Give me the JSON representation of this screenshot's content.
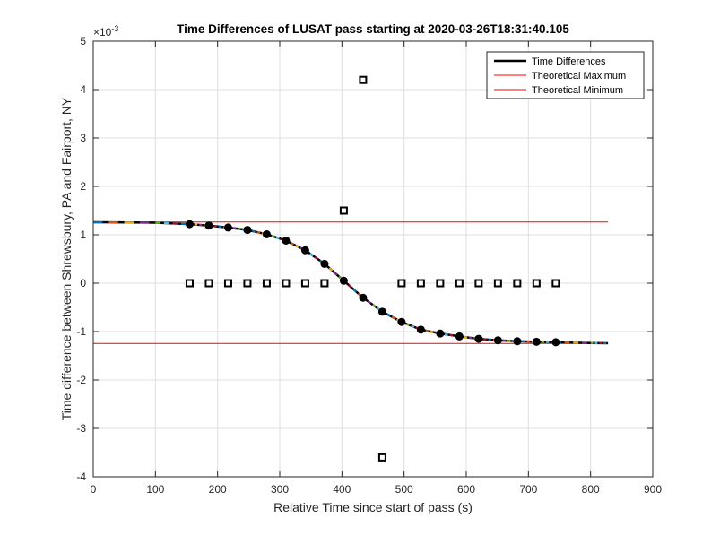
{
  "chart_data": {
    "type": "line",
    "title": "Time Differences of LUSAT pass starting at 2020-03-26T18:31:40.105",
    "xlabel": "Relative Time since start of pass (s)",
    "ylabel": "Time difference between Shrewsbury, PA and Fairport, NY",
    "y_exponent_label": "×10",
    "y_exponent_power": "-3",
    "y_scale": 0.001,
    "xlim": [
      0,
      900
    ],
    "ylim": [
      -4,
      5
    ],
    "xticks": [
      0,
      100,
      200,
      300,
      400,
      500,
      600,
      700,
      800,
      900
    ],
    "yticks": [
      -4,
      -3,
      -2,
      -1,
      0,
      1,
      2,
      3,
      4,
      5
    ],
    "grid": true,
    "legend_position": "top-right",
    "legend": [
      {
        "label": "Time Differences",
        "color": "#000000"
      },
      {
        "label": "Theoretical Maximum",
        "color": "#ff0000"
      },
      {
        "label": "Theoretical Minimum",
        "color": "#ff0000"
      }
    ],
    "theoretical_maximum": {
      "value": 1.265,
      "x_range": [
        0,
        828
      ],
      "color": "#ff0000"
    },
    "theoretical_minimum": {
      "value": -1.245,
      "x_range": [
        0,
        828
      ],
      "color": "#ff0000"
    },
    "curve": {
      "x": [
        0,
        100,
        155,
        186,
        217,
        248,
        279,
        310,
        341,
        372,
        403,
        434,
        465,
        496,
        527,
        558,
        589,
        620,
        651,
        682,
        713,
        744,
        800,
        828
      ],
      "y": [
        1.26,
        1.25,
        1.22,
        1.19,
        1.15,
        1.1,
        1.01,
        0.88,
        0.68,
        0.4,
        0.05,
        -0.3,
        -0.59,
        -0.8,
        -0.96,
        -1.04,
        -1.1,
        -1.15,
        -1.18,
        -1.2,
        -1.21,
        -1.22,
        -1.235,
        -1.24
      ],
      "segment_colors": [
        "#0072BD",
        "#D95319",
        "#EDB120",
        "#7E2F8E",
        "#77AC30",
        "#4DBEEE",
        "#A2142F"
      ]
    },
    "dots": {
      "x": [
        155,
        186,
        217,
        248,
        279,
        310,
        341,
        372,
        403,
        434,
        465,
        496,
        527,
        558,
        589,
        620,
        651,
        682,
        713,
        744
      ],
      "y": [
        1.22,
        1.19,
        1.15,
        1.1,
        1.01,
        0.88,
        0.68,
        0.4,
        0.05,
        -0.3,
        -0.59,
        -0.8,
        -0.96,
        -1.04,
        -1.1,
        -1.15,
        -1.18,
        -1.2,
        -1.21,
        -1.22
      ]
    },
    "squares": {
      "x": [
        155,
        186,
        217,
        248,
        279,
        310,
        341,
        372,
        403,
        434,
        465,
        496,
        527,
        558,
        589,
        620,
        651,
        682,
        713,
        744
      ],
      "y": [
        0,
        0,
        0,
        0,
        0,
        0,
        0,
        0,
        1.5,
        4.2,
        -3.6,
        0,
        0,
        0,
        0,
        0,
        0,
        0,
        0,
        0
      ]
    }
  }
}
